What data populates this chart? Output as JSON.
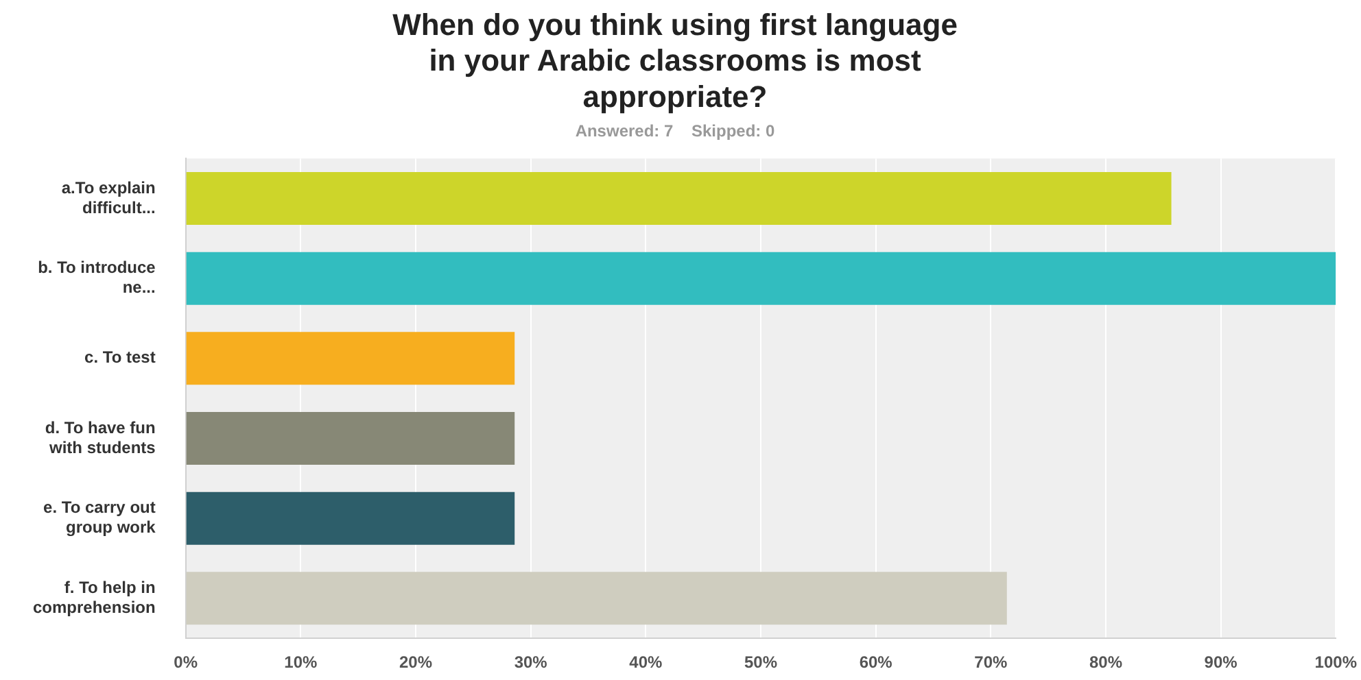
{
  "chart_data": {
    "type": "bar",
    "orientation": "horizontal",
    "title": "When do you think using first language in your Arabic classrooms is most appropriate?",
    "subtitle": "Answered: 7    Skipped: 0",
    "categories": [
      "a.To explain difficult...",
      "b. To introduce ne...",
      "c. To test",
      "d. To have fun with students",
      "e. To carry out group work",
      "f. To help in comprehension"
    ],
    "values": [
      85.7,
      100,
      28.6,
      28.6,
      28.6,
      71.4
    ],
    "colors": [
      "#cdd52a",
      "#32bdbf",
      "#f7ae1f",
      "#878876",
      "#2d5e6a",
      "#cfcdbf"
    ],
    "xlim": [
      0,
      100
    ],
    "xticks": [
      {
        "value": 0,
        "label": "0%"
      },
      {
        "value": 10,
        "label": "10%"
      },
      {
        "value": 20,
        "label": "20%"
      },
      {
        "value": 30,
        "label": "30%"
      },
      {
        "value": 40,
        "label": "40%"
      },
      {
        "value": 50,
        "label": "50%"
      },
      {
        "value": 60,
        "label": "60%"
      },
      {
        "value": 70,
        "label": "70%"
      },
      {
        "value": 80,
        "label": "80%"
      },
      {
        "value": 90,
        "label": "90%"
      },
      {
        "value": 100,
        "label": "100%"
      }
    ],
    "grid": "x",
    "legend": false
  }
}
